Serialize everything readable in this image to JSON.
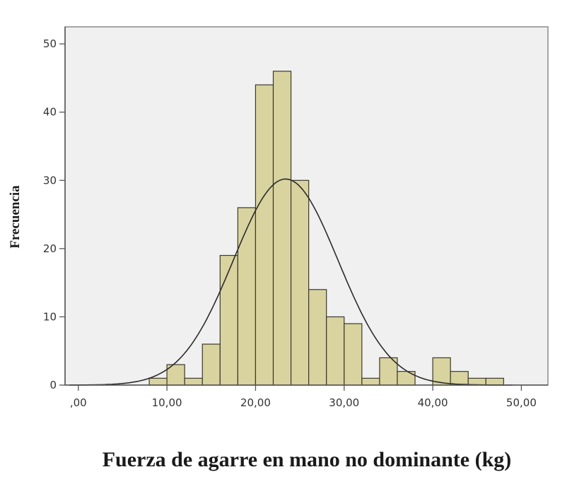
{
  "chart_data": {
    "type": "bar",
    "xlabel": "Fuerza de agarre en mano no dominante (kg)",
    "ylabel": "Frecuencia",
    "xlim": [
      -1.5,
      53
    ],
    "ylim": [
      0,
      52.5
    ],
    "x_ticks": [
      0,
      10,
      20,
      30,
      40,
      50
    ],
    "x_tick_labels": [
      ",00",
      "10,00",
      "20,00",
      "30,00",
      "40,00",
      "50,00"
    ],
    "y_ticks": [
      0,
      10,
      20,
      30,
      40,
      50
    ],
    "y_tick_labels": [
      "0",
      "10",
      "20",
      "30",
      "40",
      "50"
    ],
    "bins": [
      {
        "start": 8,
        "end": 10,
        "count": 1
      },
      {
        "start": 10,
        "end": 12,
        "count": 3
      },
      {
        "start": 12,
        "end": 14,
        "count": 1
      },
      {
        "start": 14,
        "end": 16,
        "count": 6
      },
      {
        "start": 16,
        "end": 18,
        "count": 19
      },
      {
        "start": 18,
        "end": 20,
        "count": 26
      },
      {
        "start": 20,
        "end": 22,
        "count": 44
      },
      {
        "start": 22,
        "end": 24,
        "count": 46
      },
      {
        "start": 24,
        "end": 26,
        "count": 30
      },
      {
        "start": 26,
        "end": 28,
        "count": 14
      },
      {
        "start": 28,
        "end": 30,
        "count": 10
      },
      {
        "start": 30,
        "end": 32,
        "count": 9
      },
      {
        "start": 32,
        "end": 34,
        "count": 1
      },
      {
        "start": 34,
        "end": 36,
        "count": 4
      },
      {
        "start": 36,
        "end": 38,
        "count": 2
      },
      {
        "start": 38,
        "end": 40,
        "count": 0
      },
      {
        "start": 40,
        "end": 42,
        "count": 4
      },
      {
        "start": 42,
        "end": 44,
        "count": 2
      },
      {
        "start": 44,
        "end": 46,
        "count": 1
      },
      {
        "start": 46,
        "end": 48,
        "count": 1
      }
    ],
    "normal_curve": {
      "mean": 23.4,
      "sd": 5.9,
      "peak": 30.2
    },
    "grid": false,
    "colors": {
      "bar_fill": "#d9d3a0",
      "bar_stroke": "#3a3a2a",
      "plot_background": "#f0f0f0",
      "curve": "#2b2b2b",
      "axis": "#555555"
    }
  }
}
